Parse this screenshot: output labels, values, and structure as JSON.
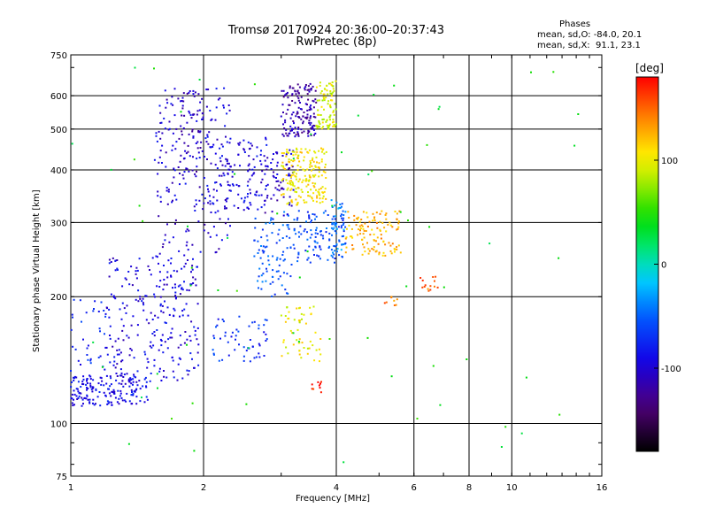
{
  "chart_data": {
    "type": "scatter",
    "title": "Tromsø 20170924 20:36:00–20:37:43",
    "subtitle": "RwPretec (8p)",
    "xlabel": "Frequency [MHz]",
    "ylabel": "Stationary phase Virtual Height [km]",
    "x_scale": "log",
    "y_scale": "log",
    "xlim": [
      1,
      16
    ],
    "ylim": [
      75,
      750
    ],
    "x_ticks": [
      "1",
      "2",
      "4",
      "6",
      "8",
      "10",
      "16"
    ],
    "y_ticks": [
      "75",
      "100",
      "200",
      "300",
      "400",
      "500",
      "600",
      "750"
    ],
    "grid": true,
    "phase_stats": {
      "header": "Phases",
      "line_o": "mean, sd,O: -84.0, 20.1",
      "line_x": "mean, sd,X:  91.1, 23.1"
    },
    "colorbar": {
      "label": "[deg]",
      "ticks": [
        "100",
        "0",
        "-100"
      ],
      "range": [
        -180,
        180
      ]
    },
    "clusters": [
      {
        "f": [
          1.0,
          1.5
        ],
        "h": [
          110,
          130
        ],
        "phase": -90,
        "n": 160
      },
      {
        "f": [
          1.0,
          1.2
        ],
        "h": [
          120,
          200
        ],
        "phase": -75,
        "n": 40
      },
      {
        "f": [
          1.2,
          1.95
        ],
        "h": [
          125,
          250
        ],
        "phase": -95,
        "n": 260
      },
      {
        "f": [
          1.55,
          2.3
        ],
        "h": [
          250,
          630
        ],
        "phase": -100,
        "n": 170
      },
      {
        "f": [
          1.75,
          2.0
        ],
        "h": [
          380,
          620
        ],
        "phase": -110,
        "n": 60
      },
      {
        "f": [
          2.0,
          2.8
        ],
        "h": [
          320,
          480
        ],
        "phase": -95,
        "n": 140
      },
      {
        "f": [
          2.1,
          2.8
        ],
        "h": [
          140,
          180
        ],
        "phase": -70,
        "n": 55
      },
      {
        "f": [
          2.6,
          3.2
        ],
        "h": [
          200,
          320
        ],
        "phase": -55,
        "n": 90
      },
      {
        "f": [
          2.75,
          3.2
        ],
        "h": [
          310,
          450
        ],
        "phase": -105,
        "n": 60
      },
      {
        "f": [
          3.0,
          3.6
        ],
        "h": [
          480,
          640
        ],
        "phase": -115,
        "n": 150
      },
      {
        "f": [
          3.0,
          3.8
        ],
        "h": [
          330,
          450
        ],
        "phase": 105,
        "n": 190
      },
      {
        "f": [
          3.6,
          4.0
        ],
        "h": [
          500,
          650
        ],
        "phase": 95,
        "n": 90
      },
      {
        "f": [
          3.0,
          3.7
        ],
        "h": [
          140,
          190
        ],
        "phase": 100,
        "n": 55
      },
      {
        "f": [
          3.2,
          4.2
        ],
        "h": [
          240,
          320
        ],
        "phase": -60,
        "n": 110
      },
      {
        "f": [
          3.9,
          4.2
        ],
        "h": [
          250,
          340
        ],
        "phase": -40,
        "n": 40
      },
      {
        "f": [
          4.2,
          5.6
        ],
        "h": [
          250,
          320
        ],
        "phase": 125,
        "n": 120
      },
      {
        "f": [
          3.5,
          3.7
        ],
        "h": [
          118,
          126
        ],
        "phase": 175,
        "n": 10
      },
      {
        "f": [
          6.1,
          6.8
        ],
        "h": [
          205,
          225
        ],
        "phase": 150,
        "n": 14
      },
      {
        "f": [
          5.1,
          5.5
        ],
        "h": [
          190,
          200
        ],
        "phase": 140,
        "n": 8
      },
      {
        "f": [
          1.0,
          15.0
        ],
        "h": [
          80,
          700
        ],
        "phase": 40,
        "n": 70
      }
    ]
  }
}
